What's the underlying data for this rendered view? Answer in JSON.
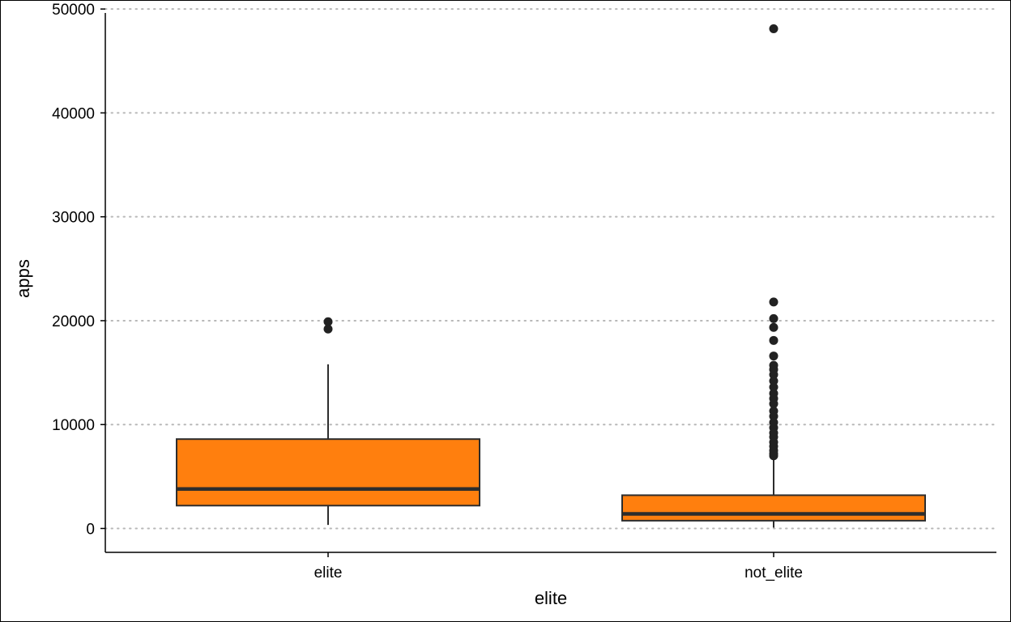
{
  "chart_data": {
    "type": "box",
    "xlabel": "elite",
    "ylabel": "apps",
    "ylim": [
      -2300,
      50400
    ],
    "y_ticks": [
      0,
      10000,
      20000,
      30000,
      40000,
      50000
    ],
    "y_tick_labels": [
      "0",
      "10000",
      "20000",
      "30000",
      "40000",
      "50000"
    ],
    "grid": "horizontal dotted",
    "categories": [
      "elite",
      "not_elite"
    ],
    "boxes": [
      {
        "category": "elite",
        "whisker_low": 340,
        "q1": 2200,
        "median": 3800,
        "q3": 8600,
        "whisker_high": 15800,
        "outliers": [
          19900,
          19200
        ]
      },
      {
        "category": "not_elite",
        "whisker_low": 80,
        "q1": 750,
        "median": 1400,
        "q3": 3200,
        "whisker_high": 6900,
        "outliers": [
          48100,
          21800,
          20200,
          19350,
          18100,
          16600,
          15700,
          15300,
          14800,
          14200,
          13600,
          13000,
          12500,
          12000,
          11300,
          10800,
          10200,
          9700,
          9200,
          8800,
          8300,
          7900,
          7500,
          7200,
          7000
        ]
      }
    ],
    "colors": {
      "box_fill": "#ff7f0e",
      "box_stroke": "#2d2d2d",
      "points": "#222222",
      "grid": "#b8b8b8"
    }
  }
}
